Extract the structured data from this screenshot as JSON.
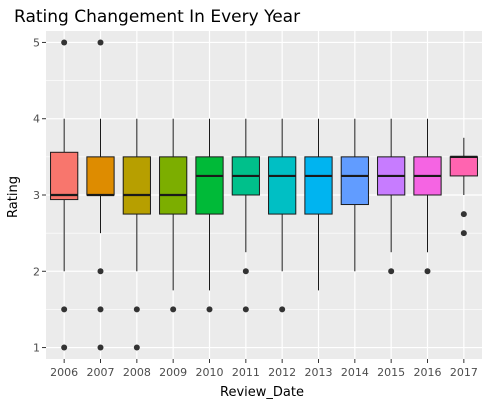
{
  "chart_data": {
    "type": "box",
    "title": "Rating Changement In Every Year",
    "xlabel": "Review_Date",
    "ylabel": "Rating",
    "categories": [
      "2006",
      "2007",
      "2008",
      "2009",
      "2010",
      "2011",
      "2012",
      "2013",
      "2014",
      "2015",
      "2016",
      "2017"
    ],
    "ylim": [
      0.85,
      5.15
    ],
    "yticks": [
      1,
      2,
      3,
      4,
      5
    ],
    "grid": true,
    "panel_background": "#ebebeb",
    "grid_color": "#ffffff",
    "box_outline_color": "#1a1a1a",
    "outlier_color": "#333333",
    "boxes": [
      {
        "category": "2006",
        "min": 2.0,
        "q1": 2.94,
        "median": 3.0,
        "q3": 3.56,
        "max": 4.0,
        "outliers": [
          5.0,
          1.5,
          1.0
        ],
        "color": "#F8766D"
      },
      {
        "category": "2007",
        "min": 2.5,
        "q1": 3.0,
        "median": 3.0,
        "q3": 3.5,
        "max": 4.0,
        "outliers": [
          5.0,
          2.0,
          1.5,
          1.0
        ],
        "color": "#DE8C00"
      },
      {
        "category": "2008",
        "min": 2.0,
        "q1": 2.75,
        "median": 3.0,
        "q3": 3.5,
        "max": 4.0,
        "outliers": [
          1.5,
          1.0
        ],
        "color": "#B79F00"
      },
      {
        "category": "2009",
        "min": 1.75,
        "q1": 2.75,
        "median": 3.0,
        "q3": 3.5,
        "max": 4.0,
        "outliers": [
          1.5
        ],
        "color": "#7CAE00"
      },
      {
        "category": "2010",
        "min": 1.75,
        "q1": 2.75,
        "median": 3.25,
        "q3": 3.5,
        "max": 4.0,
        "outliers": [
          1.5
        ],
        "color": "#00BA38"
      },
      {
        "category": "2011",
        "min": 2.25,
        "q1": 3.0,
        "median": 3.25,
        "q3": 3.5,
        "max": 4.0,
        "outliers": [
          2.0,
          1.5
        ],
        "color": "#00C08B"
      },
      {
        "category": "2012",
        "min": 2.0,
        "q1": 2.75,
        "median": 3.25,
        "q3": 3.5,
        "max": 4.0,
        "outliers": [
          1.5
        ],
        "color": "#00BFC4"
      },
      {
        "category": "2013",
        "min": 1.75,
        "q1": 2.75,
        "median": 3.25,
        "q3": 3.5,
        "max": 4.0,
        "outliers": [],
        "color": "#00B4F0"
      },
      {
        "category": "2014",
        "min": 2.0,
        "q1": 2.875,
        "median": 3.25,
        "q3": 3.5,
        "max": 4.0,
        "outliers": [],
        "color": "#619CFF"
      },
      {
        "category": "2015",
        "min": 2.25,
        "q1": 3.0,
        "median": 3.25,
        "q3": 3.5,
        "max": 4.0,
        "outliers": [
          2.0
        ],
        "color": "#C77CFF"
      },
      {
        "category": "2016",
        "min": 2.25,
        "q1": 3.0,
        "median": 3.25,
        "q3": 3.5,
        "max": 4.0,
        "outliers": [
          2.0
        ],
        "color": "#F564E3"
      },
      {
        "category": "2017",
        "min": 3.0,
        "q1": 3.25,
        "median": 3.5,
        "q3": 3.5,
        "max": 3.75,
        "outliers": [
          2.75,
          2.5
        ],
        "color": "#FF64B0"
      }
    ]
  }
}
